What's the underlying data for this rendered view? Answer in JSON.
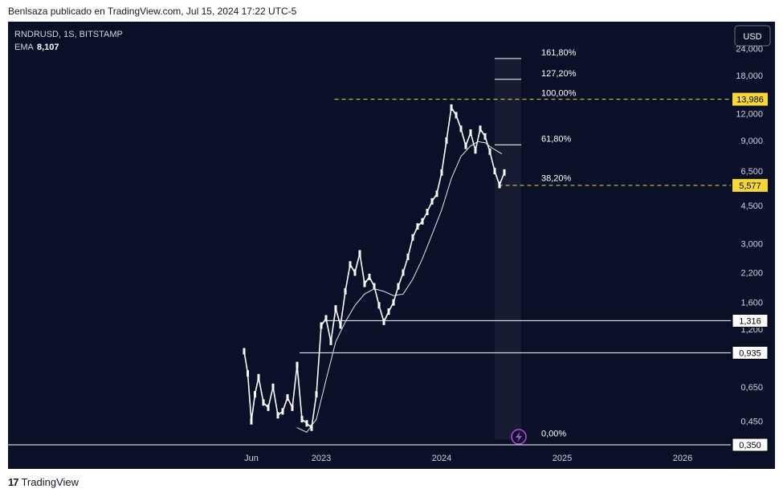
{
  "header": {
    "text": "Benlsaza publicado en TradingView.com, Jul 15, 2024 17:22 UTC-5"
  },
  "chart_info": {
    "symbol_line": "RNDRUSD, 1S, BITSTAMP",
    "ema_label": "EMA",
    "ema_value": "8,107"
  },
  "currency_button": "USD",
  "footer": {
    "logo_mark": "17",
    "brand": "TradingView"
  },
  "colors": {
    "background": "#0b1029",
    "candle": "#ffffff",
    "dashed_level": "#f5d63b",
    "price_tag": "#f5d63b",
    "axis_text": "#d1d4dc"
  },
  "chart_data": {
    "type": "line",
    "title": "RNDRUSD, 1S, BITSTAMP",
    "y_scale": "log",
    "ylim": [
      0.3,
      32
    ],
    "x_labels": [
      {
        "t": 2022.42,
        "label": "Jun"
      },
      {
        "t": 2023.0,
        "label": "2023"
      },
      {
        "t": 2024.0,
        "label": "2024"
      },
      {
        "t": 2025.0,
        "label": "2025"
      },
      {
        "t": 2026.0,
        "label": "2026"
      }
    ],
    "xlim": [
      2020.4,
      2026.4
    ],
    "y_ticks": [
      {
        "value": 24.0,
        "label": "24,000"
      },
      {
        "value": 18.0,
        "label": "18,000"
      },
      {
        "value": 12.0,
        "label": "12,000"
      },
      {
        "value": 9.0,
        "label": "9,000"
      },
      {
        "value": 6.5,
        "label": "6,500"
      },
      {
        "value": 4.5,
        "label": "4,500"
      },
      {
        "value": 3.0,
        "label": "3,000"
      },
      {
        "value": 2.2,
        "label": "2,200"
      },
      {
        "value": 1.6,
        "label": "1,600"
      },
      {
        "value": 1.2,
        "label": "1,200"
      },
      {
        "value": 0.65,
        "label": "0,650"
      },
      {
        "value": 0.45,
        "label": "0,450"
      }
    ],
    "price_tags": [
      {
        "value": 13.986,
        "label": "13,986",
        "style": "yellow"
      },
      {
        "value": 5.577,
        "label": "5,577",
        "style": "yellow"
      },
      {
        "value": 1.316,
        "label": "1,316",
        "style": "white"
      },
      {
        "value": 0.935,
        "label": "0,935",
        "style": "white"
      },
      {
        "value": 0.35,
        "label": "0,350",
        "style": "white"
      }
    ],
    "horizontal_lines": [
      {
        "value": 13.986,
        "from_t": 2023.11,
        "style": "dashed-yellow"
      },
      {
        "value": 5.577,
        "from_t": 2024.47,
        "style": "dashed-yellow"
      },
      {
        "value": 1.316,
        "from_t": 2023.03,
        "style": "solid-white"
      },
      {
        "value": 0.935,
        "from_t": 2022.82,
        "style": "solid-white"
      },
      {
        "value": 0.35,
        "from_t": 2020.4,
        "style": "solid-white"
      }
    ],
    "fib_levels": [
      {
        "label": "161,80%",
        "value": 21.6
      },
      {
        "label": "127,20%",
        "value": 17.3
      },
      {
        "label": "100,00%",
        "value": 13.986
      },
      {
        "label": "61,80%",
        "value": 8.6
      },
      {
        "label": "38,20%",
        "value": 5.65
      },
      {
        "label": "0,00%",
        "value": 0.37
      }
    ],
    "series": [
      {
        "name": "RNDRUSD",
        "x": [
          2022.36,
          2022.39,
          2022.42,
          2022.45,
          2022.48,
          2022.52,
          2022.56,
          2022.6,
          2022.64,
          2022.68,
          2022.72,
          2022.76,
          2022.8,
          2022.84,
          2022.88,
          2022.92,
          2022.96,
          2023.0,
          2023.04,
          2023.08,
          2023.12,
          2023.16,
          2023.2,
          2023.24,
          2023.28,
          2023.32,
          2023.36,
          2023.4,
          2023.44,
          2023.48,
          2023.52,
          2023.56,
          2023.6,
          2023.64,
          2023.68,
          2023.72,
          2023.76,
          2023.8,
          2023.84,
          2023.88,
          2023.92,
          2023.96,
          2024.0,
          2024.04,
          2024.08,
          2024.12,
          2024.16,
          2024.2,
          2024.24,
          2024.28,
          2024.32,
          2024.36,
          2024.4,
          2024.44,
          2024.48,
          2024.52
        ],
        "values": [
          0.95,
          0.75,
          0.45,
          0.6,
          0.72,
          0.55,
          0.52,
          0.65,
          0.48,
          0.5,
          0.58,
          0.52,
          0.82,
          0.46,
          0.44,
          0.42,
          0.6,
          1.25,
          1.35,
          1.05,
          1.5,
          1.25,
          1.8,
          2.4,
          2.2,
          2.7,
          1.95,
          2.1,
          1.9,
          1.55,
          1.3,
          1.45,
          1.6,
          1.9,
          2.2,
          2.6,
          3.2,
          3.6,
          3.8,
          4.2,
          4.7,
          5.1,
          6.4,
          9.0,
          12.8,
          11.8,
          10.2,
          8.5,
          9.8,
          8.1,
          10.2,
          9.4,
          8.0,
          6.5,
          5.6,
          6.4
        ]
      },
      {
        "name": "EMA",
        "x": [
          2022.8,
          2022.88,
          2022.96,
          2023.04,
          2023.12,
          2023.2,
          2023.28,
          2023.36,
          2023.44,
          2023.52,
          2023.6,
          2023.68,
          2023.76,
          2023.84,
          2023.92,
          2024.0,
          2024.08,
          2024.16,
          2024.24,
          2024.3,
          2024.36,
          2024.42,
          2024.5
        ],
        "values": [
          0.42,
          0.4,
          0.46,
          0.7,
          1.05,
          1.3,
          1.55,
          1.75,
          1.85,
          1.8,
          1.72,
          1.75,
          2.05,
          2.55,
          3.3,
          4.3,
          6.0,
          7.6,
          8.5,
          8.9,
          8.8,
          8.3,
          7.8
        ]
      }
    ]
  }
}
